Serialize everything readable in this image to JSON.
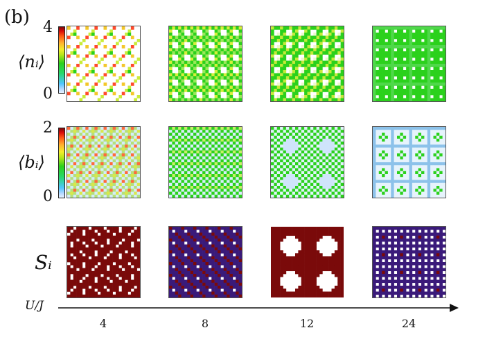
{
  "panel_label": "(b)",
  "rows": [
    {
      "label": "⟨nᵢ⟩",
      "cb_max": "4",
      "cb_min": "0"
    },
    {
      "label": "⟨bᵢ⟩",
      "cb_max": "2",
      "cb_min": "0"
    },
    {
      "label": "Sᵢ"
    }
  ],
  "axis_label": "U/J",
  "x_ticks": [
    "4",
    "8",
    "12",
    "24"
  ],
  "colors": {
    "spin_red": "#7a0a0a",
    "spin_blue": "#3a1a7a",
    "density_green": "#2bd11c",
    "density_light_blue": "#cfe4fb"
  },
  "chart_data": {
    "type": "heatmap",
    "rows": [
      "⟨nᵢ⟩",
      "⟨bᵢ⟩",
      "Sᵢ"
    ],
    "columns": [
      4,
      8,
      12,
      24
    ],
    "colorbar_ranges": {
      "⟨nᵢ⟩": [
        0,
        4
      ],
      "⟨bᵢ⟩": [
        0,
        2
      ]
    },
    "xlabel": "U/J"
  }
}
